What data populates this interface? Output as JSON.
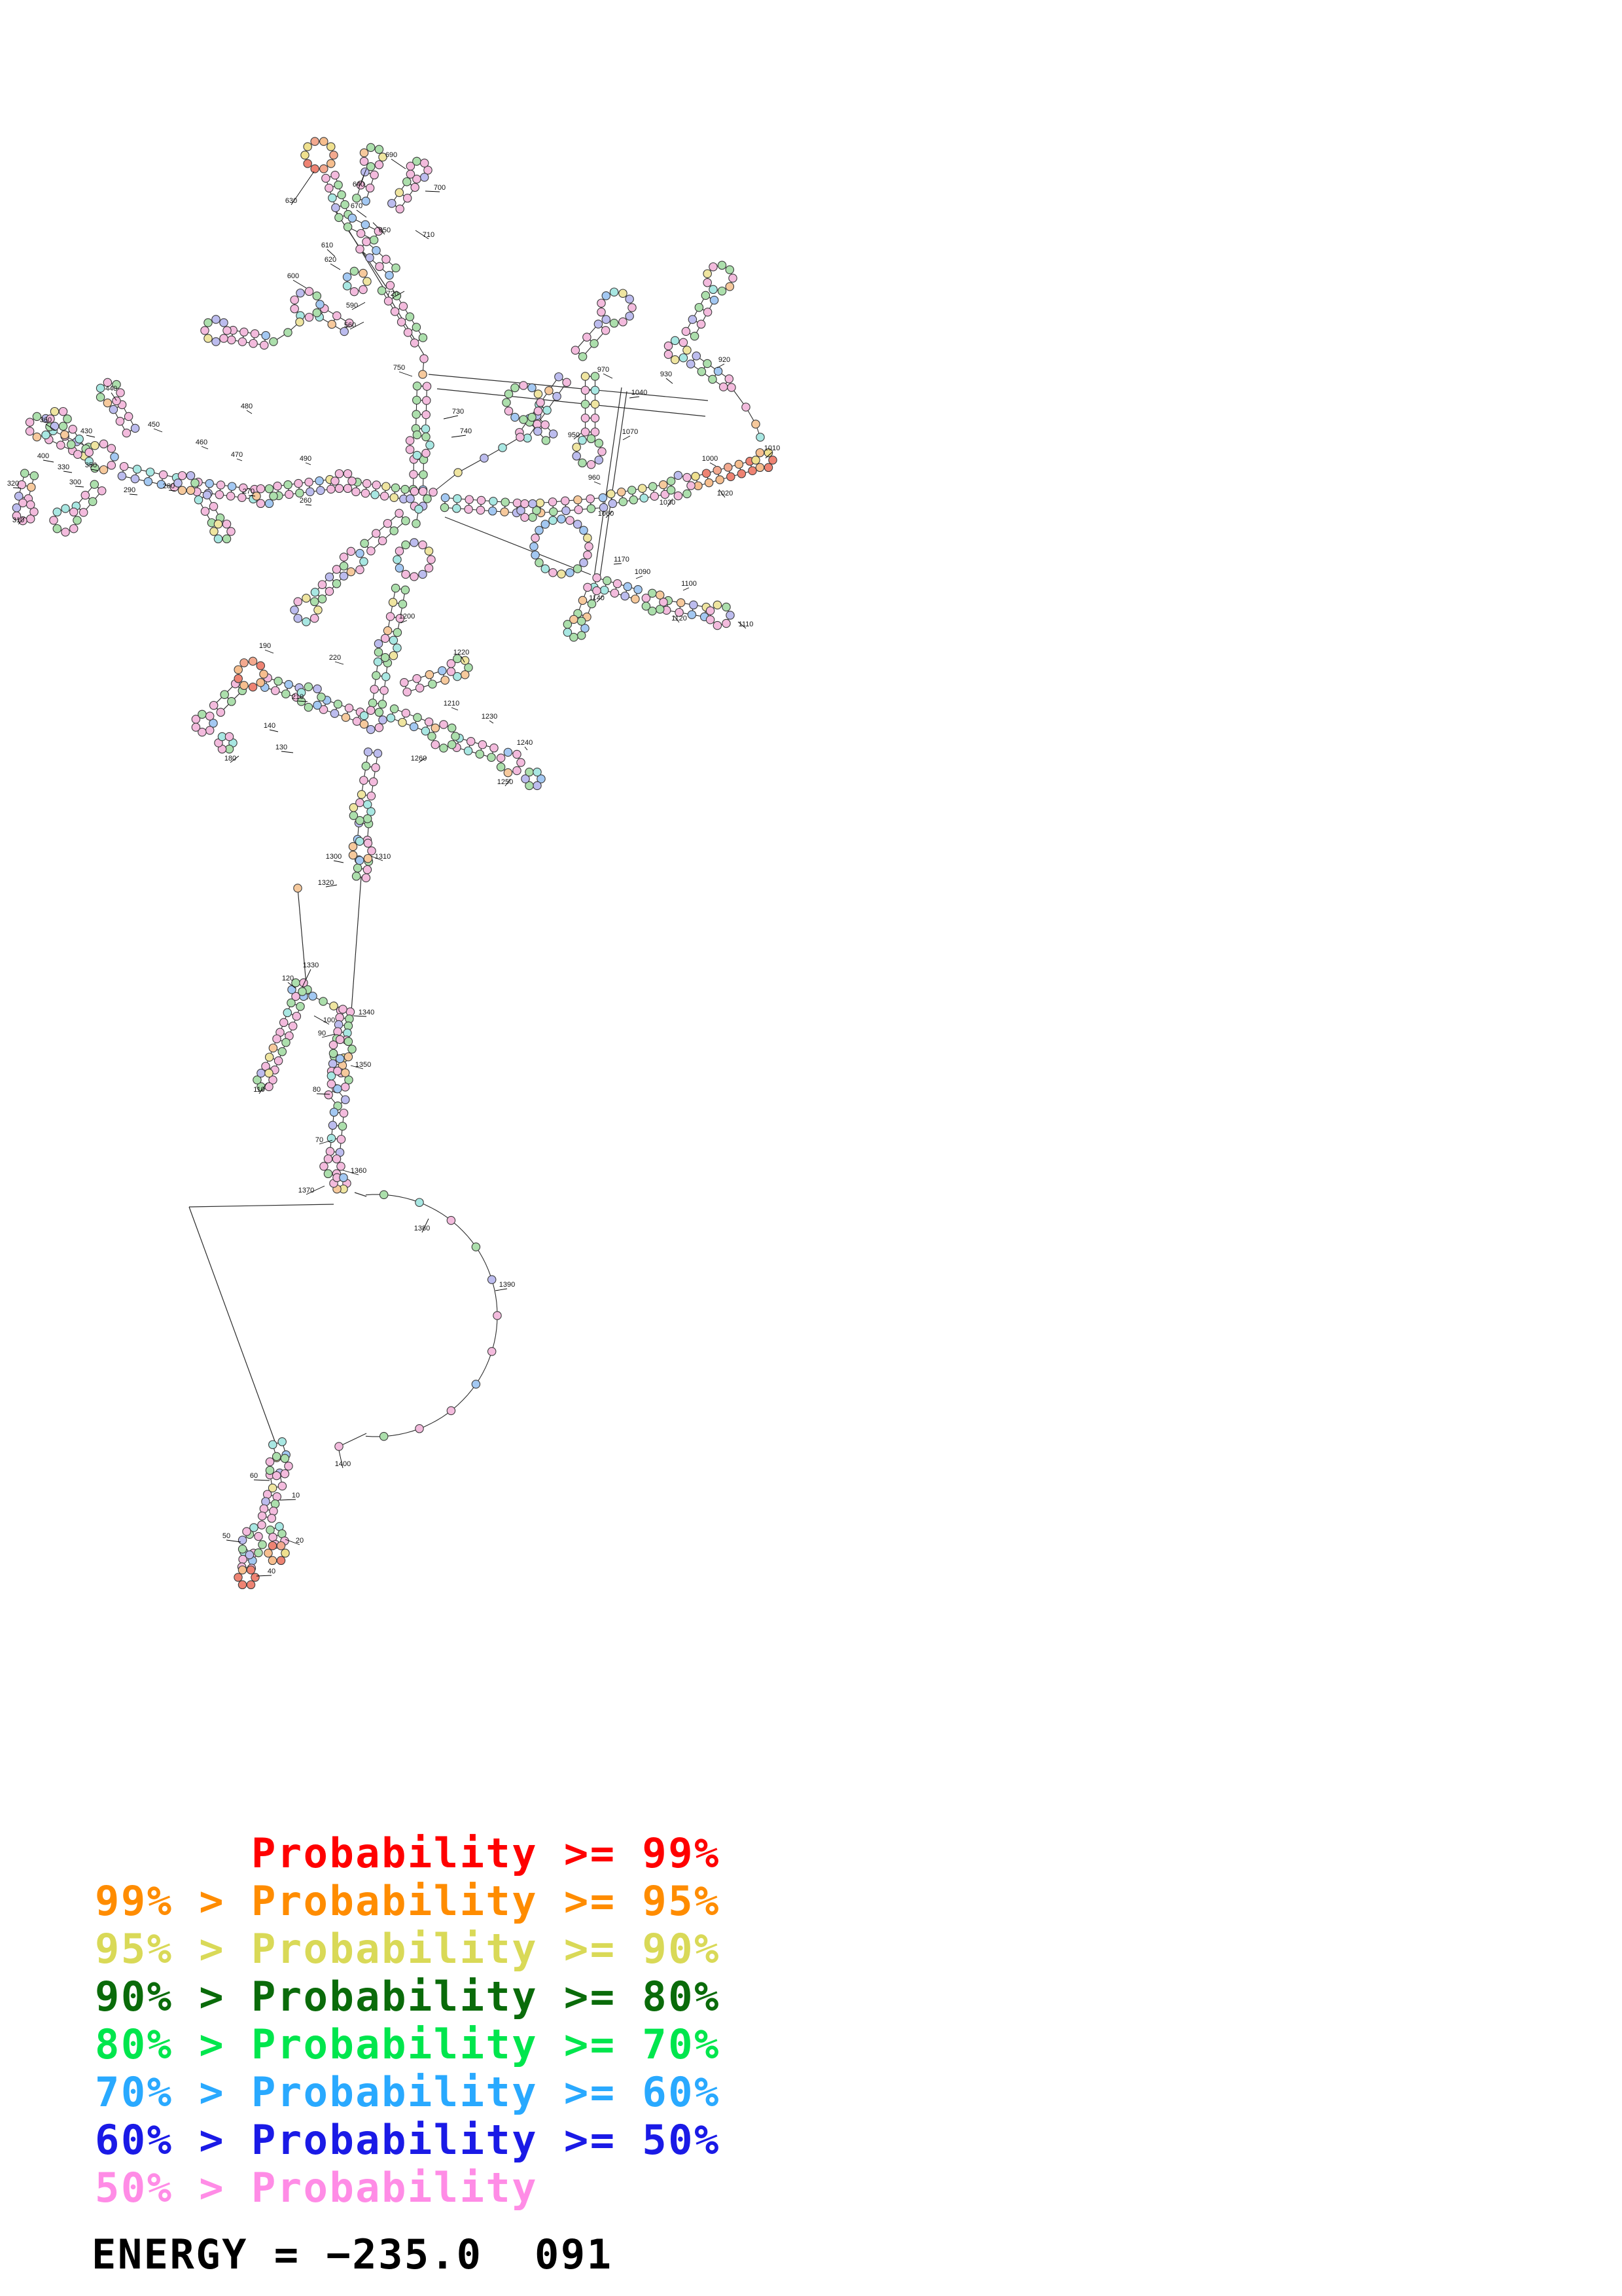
{
  "figure": {
    "kind": "rna-secondary-structure-probability-plot",
    "background": "#ffffff"
  },
  "legend": {
    "entries": [
      {
        "text": "      Probability >= 99%",
        "color": "#FF0000"
      },
      {
        "text": "99% > Probability >= 95%",
        "color": "#FF8C00"
      },
      {
        "text": "95% > Probability >= 90%",
        "color": "#D9D957"
      },
      {
        "text": "90% > Probability >= 80%",
        "color": "#0A6B0A"
      },
      {
        "text": "80% > Probability >= 70%",
        "color": "#00E64D"
      },
      {
        "text": "70% > Probability >= 60%",
        "color": "#29A9FF"
      },
      {
        "text": "60% > Probability >= 50%",
        "color": "#1A1AE6"
      },
      {
        "text": "50% > Probability",
        "color": "#FF8CE6"
      }
    ]
  },
  "energy": {
    "text": "ENERGY = −235.0  091",
    "color": "#000000"
  },
  "structure": {
    "style": {
      "line_color": "#2b2b2b",
      "circle_stroke": "#3a3a3a",
      "circle_radius": 6.2,
      "color_seed": 1337
    },
    "palette": [
      [
        "#F3BBDD",
        40
      ],
      [
        "#ACDFAC",
        22
      ],
      [
        "#BCBCEE",
        10
      ],
      [
        "#A3C8F2",
        9
      ],
      [
        "#A8E7E2",
        7
      ],
      [
        "#EFE5A0",
        6
      ],
      [
        "#F6C99C",
        6
      ]
    ],
    "palette_warm": [
      [
        "#F6BE8E",
        35
      ],
      [
        "#EE8373",
        30
      ],
      [
        "#F3A98F",
        20
      ],
      [
        "#EFE08E",
        15
      ]
    ],
    "helices": [
      [
        505,
        270,
        525,
        330,
        5
      ],
      [
        565,
        265,
        552,
        305,
        3
      ],
      [
        628,
        282,
        605,
        315,
        3
      ],
      [
        535,
        340,
        575,
        360,
        3
      ],
      [
        555,
        375,
        600,
        415,
        4
      ],
      [
        590,
        440,
        640,
        520,
        6
      ],
      [
        492,
        478,
        530,
        500,
        3
      ],
      [
        355,
        512,
        405,
        520,
        4
      ],
      [
        645,
        590,
        643,
        655,
        4
      ],
      [
        640,
        702,
        639,
        748,
        3
      ],
      [
        800,
        665,
        860,
        580,
        5
      ],
      [
        885,
        540,
        920,
        500,
        3
      ],
      [
        902,
        575,
        902,
        660,
        5
      ],
      [
        815,
        640,
        840,
        668,
        3
      ],
      [
        1085,
        455,
        1055,
        510,
        4
      ],
      [
        1060,
        550,
        1110,
        585,
        4
      ],
      [
        618,
        755,
        545,
        744,
        6
      ],
      [
        505,
        740,
        425,
        750,
        6
      ],
      [
        388,
        755,
        302,
        744,
        6
      ],
      [
        268,
        737,
        188,
        720,
        5
      ],
      [
        132,
        690,
        78,
        665,
        4
      ],
      [
        45,
        725,
        36,
        760,
        3
      ],
      [
        150,
        745,
        122,
        778,
        3
      ],
      [
        180,
        622,
        200,
        658,
        3
      ],
      [
        105,
        660,
        125,
        690,
        3
      ],
      [
        310,
        760,
        330,
        795,
        3
      ],
      [
        680,
        768,
        790,
        776,
        7
      ],
      [
        826,
        776,
        922,
        768,
        6
      ],
      [
        935,
        762,
        1015,
        748,
        6
      ],
      [
        1065,
        735,
        1148,
        712,
        6,
        1
      ],
      [
        615,
        790,
        562,
        836,
        4
      ],
      [
        520,
        875,
        487,
        910,
        4
      ],
      [
        612,
        900,
        600,
        965,
        4
      ],
      [
        585,
        1012,
        577,
        1075,
        4
      ],
      [
        548,
        1095,
        497,
        1077,
        4
      ],
      [
        455,
        1058,
        407,
        1043,
        4
      ],
      [
        365,
        1050,
        332,
        1083,
        3
      ],
      [
        600,
        1090,
        653,
        1110,
        4
      ],
      [
        700,
        1135,
        753,
        1150,
        4
      ],
      [
        620,
        1050,
        678,
        1032,
        4
      ],
      [
        570,
        1150,
        560,
        1215,
        4
      ],
      [
        556,
        1258,
        554,
        1283,
        2
      ],
      [
        556,
        1315,
        552,
        1340,
        3
      ],
      [
        452,
        1535,
        435,
        1580,
        4
      ],
      [
        430,
        1590,
        413,
        1632,
        4
      ],
      [
        528,
        1545,
        522,
        1588,
        5
      ],
      [
        518,
        1615,
        514,
        1638,
        3
      ],
      [
        508,
        1668,
        522,
        1685,
        2
      ],
      [
        518,
        1700,
        512,
        1760,
        4
      ],
      [
        910,
        890,
        973,
        908,
        5
      ],
      [
        1020,
        925,
        1078,
        935,
        4
      ],
      [
        905,
        900,
        890,
        940,
        3
      ],
      [
        424,
        2205,
        430,
        2225,
        2
      ],
      [
        420,
        2252,
        424,
        2272,
        2
      ],
      [
        416,
        2285,
        408,
        2318,
        4
      ],
      [
        380,
        2372,
        377,
        2395,
        3
      ],
      [
        420,
        2335,
        428,
        2357,
        3
      ]
    ],
    "rings": [
      [
        488,
        237,
        22,
        1
      ],
      [
        570,
        240,
        15
      ],
      [
        640,
        260,
        14
      ],
      [
        545,
        430,
        16
      ],
      [
        469,
        465,
        20
      ],
      [
        330,
        505,
        17
      ],
      [
        942,
        470,
        24
      ],
      [
        800,
        615,
        26
      ],
      [
        900,
        690,
        20
      ],
      [
        641,
        680,
        16
      ],
      [
        1100,
        425,
        20
      ],
      [
        1035,
        535,
        15
      ],
      [
        155,
        698,
        20
      ],
      [
        60,
        652,
        16
      ],
      [
        38,
        782,
        14
      ],
      [
        100,
        795,
        18
      ],
      [
        168,
        600,
        16
      ],
      [
        90,
        640,
        13
      ],
      [
        340,
        812,
        13
      ],
      [
        405,
        758,
        13
      ],
      [
        285,
        738,
        13
      ],
      [
        525,
        735,
        13
      ],
      [
        808,
        780,
        12
      ],
      [
        640,
        762,
        13
      ],
      [
        633,
        855,
        26
      ],
      [
        858,
        835,
        42
      ],
      [
        592,
        990,
        15
      ],
      [
        570,
        1100,
        15
      ],
      [
        475,
        1065,
        16
      ],
      [
        383,
        1030,
        20,
        1
      ],
      [
        312,
        1105,
        14
      ],
      [
        345,
        1135,
        11
      ],
      [
        678,
        1125,
        18
      ],
      [
        780,
        1165,
        16
      ],
      [
        815,
        1190,
        12
      ],
      [
        702,
        1020,
        14
      ],
      [
        553,
        1240,
        14
      ],
      [
        553,
        1300,
        15
      ],
      [
        458,
        1512,
        12
      ],
      [
        405,
        1650,
        12
      ],
      [
        523,
        1603,
        15
      ],
      [
        519,
        1650,
        14
      ],
      [
        508,
        1782,
        13
      ],
      [
        520,
        1808,
        10
      ],
      [
        1040,
        742,
        16
      ],
      [
        1168,
        703,
        13,
        1
      ],
      [
        1000,
        920,
        14
      ],
      [
        1100,
        940,
        16
      ],
      [
        880,
        960,
        14
      ],
      [
        540,
        858,
        16
      ],
      [
        468,
        932,
        18
      ],
      [
        426,
        2240,
        15
      ],
      [
        385,
        2360,
        16
      ],
      [
        377,
        2410,
        13,
        1
      ],
      [
        423,
        2373,
        13,
        1
      ]
    ],
    "chains": [
      [
        [
          662,
          752
        ],
        [
          700,
          722
        ],
        [
          740,
          700
        ],
        [
          768,
          684
        ],
        [
          795,
          668
        ]
      ],
      [
        [
          1118,
          592
        ],
        [
          1140,
          622
        ],
        [
          1155,
          648
        ],
        [
          1162,
          668
        ]
      ],
      [
        [
          648,
          548
        ],
        [
          646,
          572
        ]
      ],
      [
        [
          418,
          522
        ],
        [
          440,
          508
        ],
        [
          458,
          492
        ]
      ],
      [
        [
          462,
          1515
        ],
        [
          478,
          1522
        ],
        [
          494,
          1530
        ],
        [
          510,
          1537
        ],
        [
          524,
          1542
        ]
      ],
      [
        [
          400,
          2330
        ],
        [
          388,
          2334
        ],
        [
          377,
          2340
        ]
      ],
      [
        [
          455,
          1357
        ]
      ],
      [
        [
          518,
          2210
        ]
      ],
      [
        [
          640,
          778
        ],
        [
          636,
          800
        ]
      ]
    ],
    "arcs": [
      [
        575,
        2010,
        185,
        -95,
        95,
        11
      ]
    ],
    "lines": [
      [
        655,
        572,
        1082,
        612
      ],
      [
        668,
        594,
        1078,
        636
      ],
      [
        512,
        322,
        590,
        438
      ],
      [
        527,
        342,
        648,
        542
      ],
      [
        950,
        592,
        908,
        882
      ],
      [
        958,
        598,
        916,
        888
      ],
      [
        680,
        790,
        903,
        878
      ],
      [
        455,
        1357,
        470,
        1527
      ],
      [
        552,
        1340,
        537,
        1545
      ],
      [
        510,
        1840,
        289,
        1844
      ],
      [
        289,
        1844,
        420,
        2202
      ],
      [
        542,
        1822,
        560,
        1828
      ],
      [
        560,
        2190,
        518,
        2210
      ]
    ],
    "labels": [
      [
        445,
        310,
        480,
        262,
        "630"
      ],
      [
        548,
        285,
        560,
        258,
        "640"
      ],
      [
        588,
        355,
        570,
        340,
        "650"
      ],
      [
        545,
        318,
        560,
        332,
        "670"
      ],
      [
        598,
        240,
        620,
        258,
        "690"
      ],
      [
        672,
        290,
        650,
        292,
        "700"
      ],
      [
        655,
        362,
        635,
        352,
        "710"
      ],
      [
        600,
        452,
        618,
        445,
        "720"
      ],
      [
        538,
        470,
        558,
        462,
        "590"
      ],
      [
        535,
        500,
        556,
        492,
        "560"
      ],
      [
        448,
        425,
        468,
        440,
        "600"
      ],
      [
        500,
        378,
        512,
        392,
        "610"
      ],
      [
        505,
        400,
        520,
        412,
        "620"
      ],
      [
        700,
        632,
        678,
        640,
        "730"
      ],
      [
        712,
        662,
        690,
        668,
        "740"
      ],
      [
        610,
        565,
        630,
        575,
        "750"
      ],
      [
        70,
        645,
        85,
        658,
        "360"
      ],
      [
        66,
        700,
        82,
        706,
        "400"
      ],
      [
        132,
        662,
        145,
        668,
        "430"
      ],
      [
        170,
        597,
        178,
        612,
        "440"
      ],
      [
        235,
        652,
        248,
        660,
        "450"
      ],
      [
        308,
        679,
        318,
        686,
        "460"
      ],
      [
        362,
        698,
        370,
        704,
        "470"
      ],
      [
        377,
        624,
        385,
        632,
        "480"
      ],
      [
        467,
        704,
        475,
        710,
        "490"
      ],
      [
        97,
        717,
        110,
        722,
        "330"
      ],
      [
        139,
        714,
        150,
        719,
        "350"
      ],
      [
        115,
        740,
        128,
        744,
        "300"
      ],
      [
        28,
        798,
        38,
        790,
        "310"
      ],
      [
        20,
        742,
        32,
        746,
        "320"
      ],
      [
        198,
        752,
        210,
        756,
        "290"
      ],
      [
        258,
        746,
        268,
        750,
        "280"
      ],
      [
        380,
        754,
        390,
        758,
        "270"
      ],
      [
        467,
        768,
        476,
        772,
        "260"
      ],
      [
        455,
        1068,
        470,
        1072,
        "210"
      ],
      [
        512,
        1008,
        525,
        1015,
        "220"
      ],
      [
        352,
        1162,
        365,
        1155,
        "180"
      ],
      [
        405,
        990,
        418,
        998,
        "190"
      ],
      [
        412,
        1112,
        425,
        1118,
        "140"
      ],
      [
        430,
        1145,
        448,
        1150,
        "130"
      ],
      [
        622,
        945,
        612,
        952,
        "1200"
      ],
      [
        690,
        1078,
        700,
        1085,
        "1210"
      ],
      [
        705,
        1000,
        710,
        1012,
        "1220"
      ],
      [
        748,
        1098,
        754,
        1105,
        "1230"
      ],
      [
        802,
        1138,
        806,
        1146,
        "1240"
      ],
      [
        772,
        1198,
        780,
        1190,
        "1250"
      ],
      [
        640,
        1162,
        652,
        1157,
        "1260"
      ],
      [
        510,
        1312,
        525,
        1318,
        "1300"
      ],
      [
        585,
        1312,
        567,
        1308,
        "1310"
      ],
      [
        498,
        1352,
        515,
        1352,
        "1320"
      ],
      [
        475,
        1478,
        462,
        1508,
        "1330"
      ],
      [
        560,
        1550,
        540,
        1552,
        "1340"
      ],
      [
        555,
        1630,
        536,
        1628,
        "1350"
      ],
      [
        548,
        1792,
        524,
        1788,
        "1360"
      ],
      [
        468,
        1822,
        496,
        1812,
        "1370"
      ],
      [
        645,
        1880,
        655,
        1862,
        "1380"
      ],
      [
        775,
        1966,
        757,
        1972,
        "1390"
      ],
      [
        524,
        2240,
        518,
        2216,
        "1400"
      ],
      [
        492,
        1582,
        512,
        1580,
        "90"
      ],
      [
        503,
        1562,
        480,
        1552,
        "100"
      ],
      [
        396,
        1668,
        408,
        1655,
        "110"
      ],
      [
        440,
        1498,
        452,
        1510,
        "120"
      ],
      [
        484,
        1668,
        504,
        1672,
        "80"
      ],
      [
        488,
        1745,
        508,
        1742,
        "70"
      ],
      [
        452,
        2288,
        428,
        2292,
        "10"
      ],
      [
        458,
        2357,
        436,
        2352,
        "20"
      ],
      [
        415,
        2404,
        392,
        2408,
        "40"
      ],
      [
        346,
        2350,
        368,
        2356,
        "50"
      ],
      [
        388,
        2258,
        412,
        2262,
        "60"
      ],
      [
        1107,
        553,
        1096,
        562,
        "920"
      ],
      [
        1018,
        575,
        1028,
        586,
        "930"
      ],
      [
        877,
        668,
        888,
        662,
        "950"
      ],
      [
        908,
        733,
        918,
        740,
        "960"
      ],
      [
        922,
        568,
        936,
        578,
        "970"
      ],
      [
        1085,
        704,
        1094,
        712,
        "1000"
      ],
      [
        1180,
        688,
        1170,
        700,
        "1010"
      ],
      [
        1108,
        757,
        1099,
        748,
        "1020"
      ],
      [
        1020,
        771,
        1028,
        762,
        "1030"
      ],
      [
        977,
        603,
        962,
        608,
        "1040"
      ],
      [
        926,
        788,
        936,
        781,
        "1060"
      ],
      [
        963,
        663,
        952,
        672,
        "1070"
      ],
      [
        982,
        877,
        972,
        884,
        "1090"
      ],
      [
        1053,
        895,
        1044,
        902,
        "1100"
      ],
      [
        1140,
        957,
        1128,
        950,
        "1110"
      ],
      [
        1038,
        948,
        1030,
        941,
        "1120"
      ],
      [
        912,
        917,
        922,
        910,
        "1140"
      ],
      [
        950,
        858,
        938,
        862,
        "1170"
      ]
    ]
  }
}
